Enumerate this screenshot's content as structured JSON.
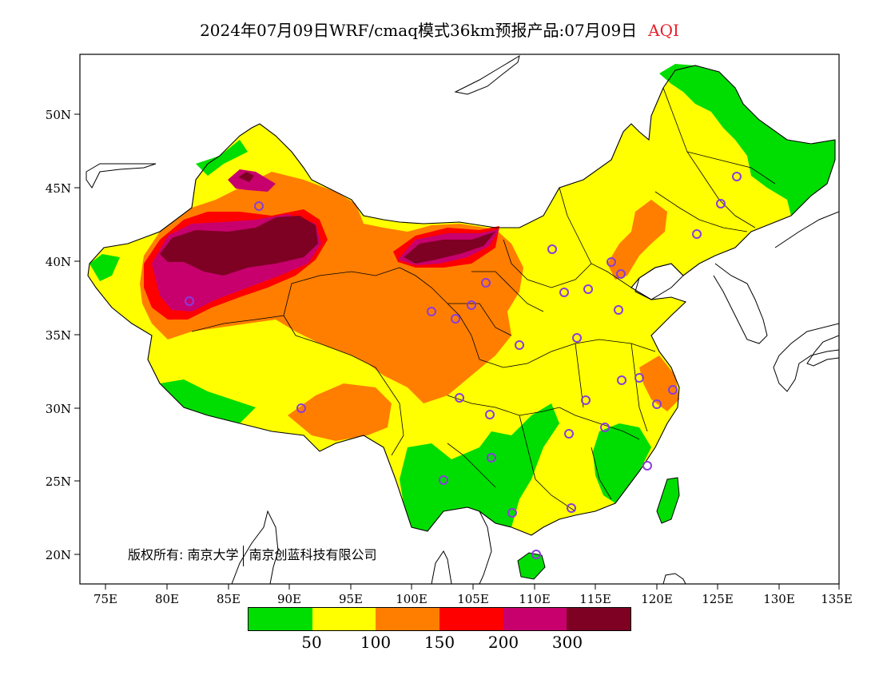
{
  "title": {
    "main": "2024年07月09日WRF/cmaq模式36km预报产品:07月09日",
    "variable": "AQI",
    "variable_color": "#e8202a"
  },
  "axes": {
    "x_ticks": [
      "75E",
      "80E",
      "85E",
      "90E",
      "95E",
      "100E",
      "105E",
      "110E",
      "115E",
      "120E",
      "125E",
      "130E",
      "135E"
    ],
    "y_ticks": [
      "50N",
      "45N",
      "40N",
      "35N",
      "30N",
      "25N",
      "20N"
    ],
    "lon_range": [
      73,
      135
    ],
    "lat_range": [
      18,
      54
    ]
  },
  "legend": {
    "colors": [
      "#00dd00",
      "#ffff00",
      "#ff7e00",
      "#ff0000",
      "#c8006e",
      "#7e0023"
    ],
    "labels": [
      "50",
      "100",
      "150",
      "200",
      "300"
    ]
  },
  "copyright": {
    "prefix": "版权所有: 南京大学",
    "suffix": "南京创蓝科技有限公司"
  },
  "station_color": "#8a3cdc"
}
